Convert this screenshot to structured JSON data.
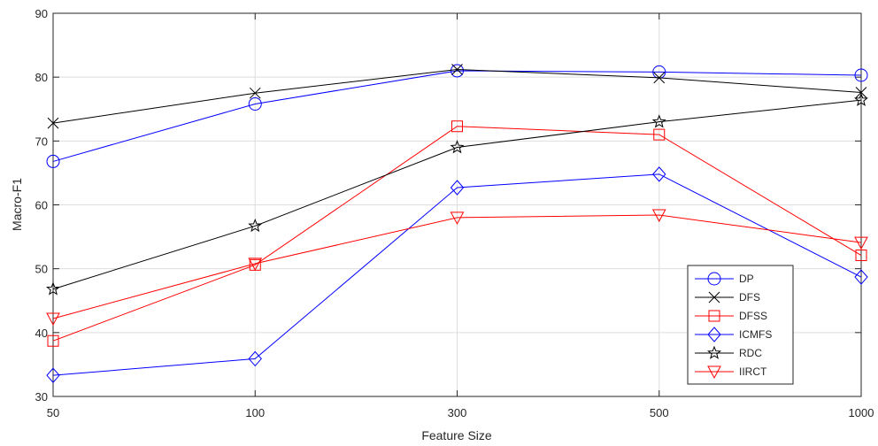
{
  "chart_data": {
    "type": "line",
    "title": "",
    "xlabel": "Feature Size",
    "ylabel": "Macro-F1",
    "categories": [
      "50",
      "100",
      "300",
      "500",
      "1000"
    ],
    "ylim": [
      30,
      90
    ],
    "yticks": [
      30,
      40,
      50,
      60,
      70,
      80,
      90
    ],
    "grid": true,
    "legend_position": "bottom-right",
    "series": [
      {
        "name": "DP",
        "color": "#0000ff",
        "marker": "circle",
        "values": [
          66.8,
          75.8,
          81.0,
          80.8,
          80.3
        ]
      },
      {
        "name": "DFS",
        "color": "#000000",
        "marker": "x",
        "values": [
          72.8,
          77.5,
          81.2,
          79.9,
          77.6
        ]
      },
      {
        "name": "DFSS",
        "color": "#ff0000",
        "marker": "square",
        "values": [
          38.7,
          50.6,
          72.3,
          71.0,
          52.1
        ]
      },
      {
        "name": "ICMFS",
        "color": "#0000ff",
        "marker": "diamond",
        "values": [
          33.3,
          35.9,
          62.7,
          64.8,
          48.7
        ]
      },
      {
        "name": "RDC",
        "color": "#000000",
        "marker": "star",
        "values": [
          46.8,
          56.7,
          69.0,
          73.0,
          76.4
        ]
      },
      {
        "name": "IIRCT",
        "color": "#ff0000",
        "marker": "triangle-down",
        "values": [
          42.2,
          50.8,
          58.0,
          58.4,
          54.1
        ]
      }
    ]
  }
}
